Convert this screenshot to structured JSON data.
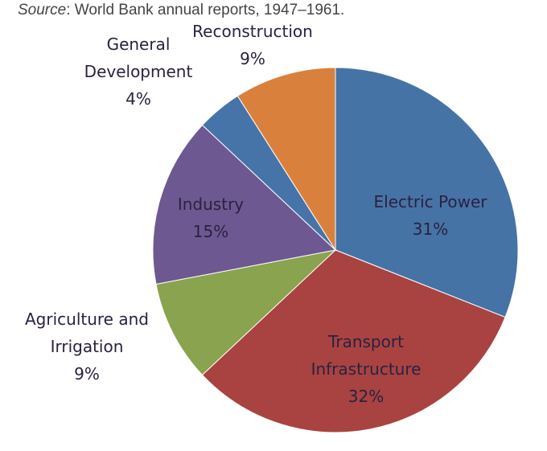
{
  "source": {
    "label": "Source",
    "text": ": World Bank annual reports, 1947–1961."
  },
  "chart_data": {
    "type": "pie",
    "title": "",
    "start_angle_deg": 90,
    "direction": "clockwise",
    "slices": [
      {
        "label": [
          "Electric Power",
          "31%"
        ],
        "value": 31,
        "color": "#4673A6",
        "label_inside": true
      },
      {
        "label": [
          "Transport",
          "Infrastructure",
          "32%"
        ],
        "value": 32,
        "color": "#A84342",
        "label_inside": true
      },
      {
        "label": [
          "Agriculture and",
          "Irrigation",
          "9%"
        ],
        "value": 9,
        "color": "#89A34E",
        "label_inside": false
      },
      {
        "label": [
          "Industry",
          "15%"
        ],
        "value": 15,
        "color": "#6E5891",
        "label_inside": true
      },
      {
        "label": [
          "General",
          "Development",
          "4%"
        ],
        "value": 4,
        "color": "#4774A8",
        "label_inside": false
      },
      {
        "label": [
          "Reconstruction",
          "9%"
        ],
        "value": 9,
        "color": "#D9813C",
        "label_inside": false
      }
    ]
  }
}
